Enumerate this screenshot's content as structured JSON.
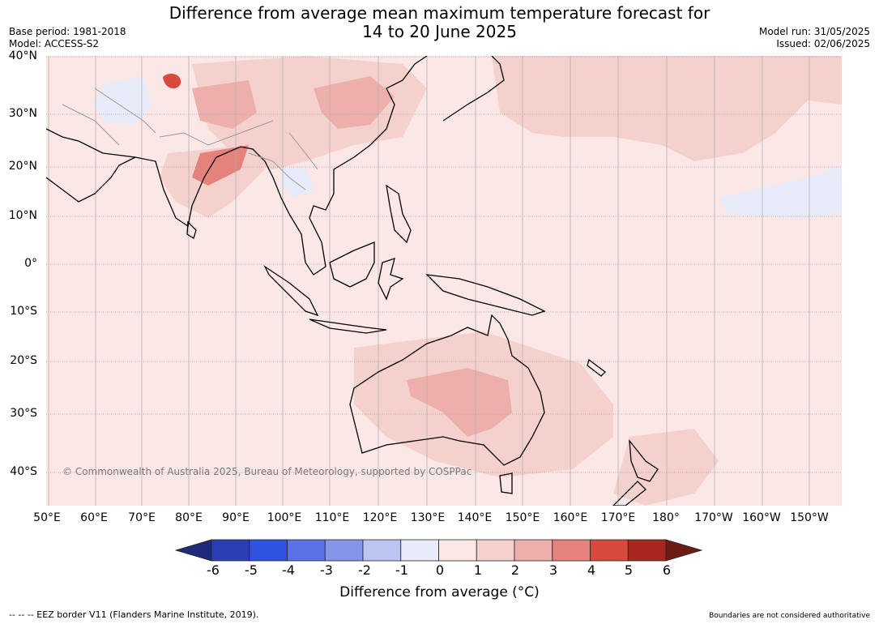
{
  "title": {
    "line1": "Difference from average mean maximum temperature forecast for",
    "line2": "14 to 20 June 2025"
  },
  "meta": {
    "base_period": "Base period: 1981-2018",
    "model": "Model: ACCESS-S2",
    "model_run": "Model run: 31/05/2025",
    "issued": "Issued: 02/06/2025"
  },
  "map": {
    "copyright": "© Commonwealth of Australia 2025, Bureau of Meteorology, supported by COSPPac",
    "lat_labels": [
      "40°N",
      "30°N",
      "20°N",
      "10°N",
      "0°",
      "10°S",
      "20°S",
      "30°S",
      "40°S"
    ],
    "lon_labels": [
      "50°E",
      "60°E",
      "70°E",
      "80°E",
      "90°E",
      "100°E",
      "110°E",
      "120°E",
      "130°E",
      "140°E",
      "150°E",
      "160°E",
      "170°E",
      "180°",
      "170°W",
      "160°W",
      "150°W"
    ],
    "background_color": "#fbe8e6",
    "land_outline_color": "#000000",
    "border_color": "#999999"
  },
  "colorbar": {
    "label": "Difference from average (°C)",
    "ticks": [
      "-6",
      "-5",
      "-4",
      "-3",
      "-2",
      "-1",
      "0",
      "1",
      "2",
      "3",
      "4",
      "5",
      "6"
    ],
    "colors": [
      "#1f2a7a",
      "#2b3fb3",
      "#2f52e0",
      "#5b72e6",
      "#8595ea",
      "#bcc5f2",
      "#e7ebfa",
      "#fbe8e6",
      "#f5d1ce",
      "#edafab",
      "#e5827c",
      "#d94a3e",
      "#a8281f",
      "#6e1b14"
    ]
  },
  "footer": {
    "eez": "--  --  -- EEZ border V11 (Flanders Marine Institute, 2019).",
    "disclaimer": "Boundaries are not considered authoritative"
  }
}
